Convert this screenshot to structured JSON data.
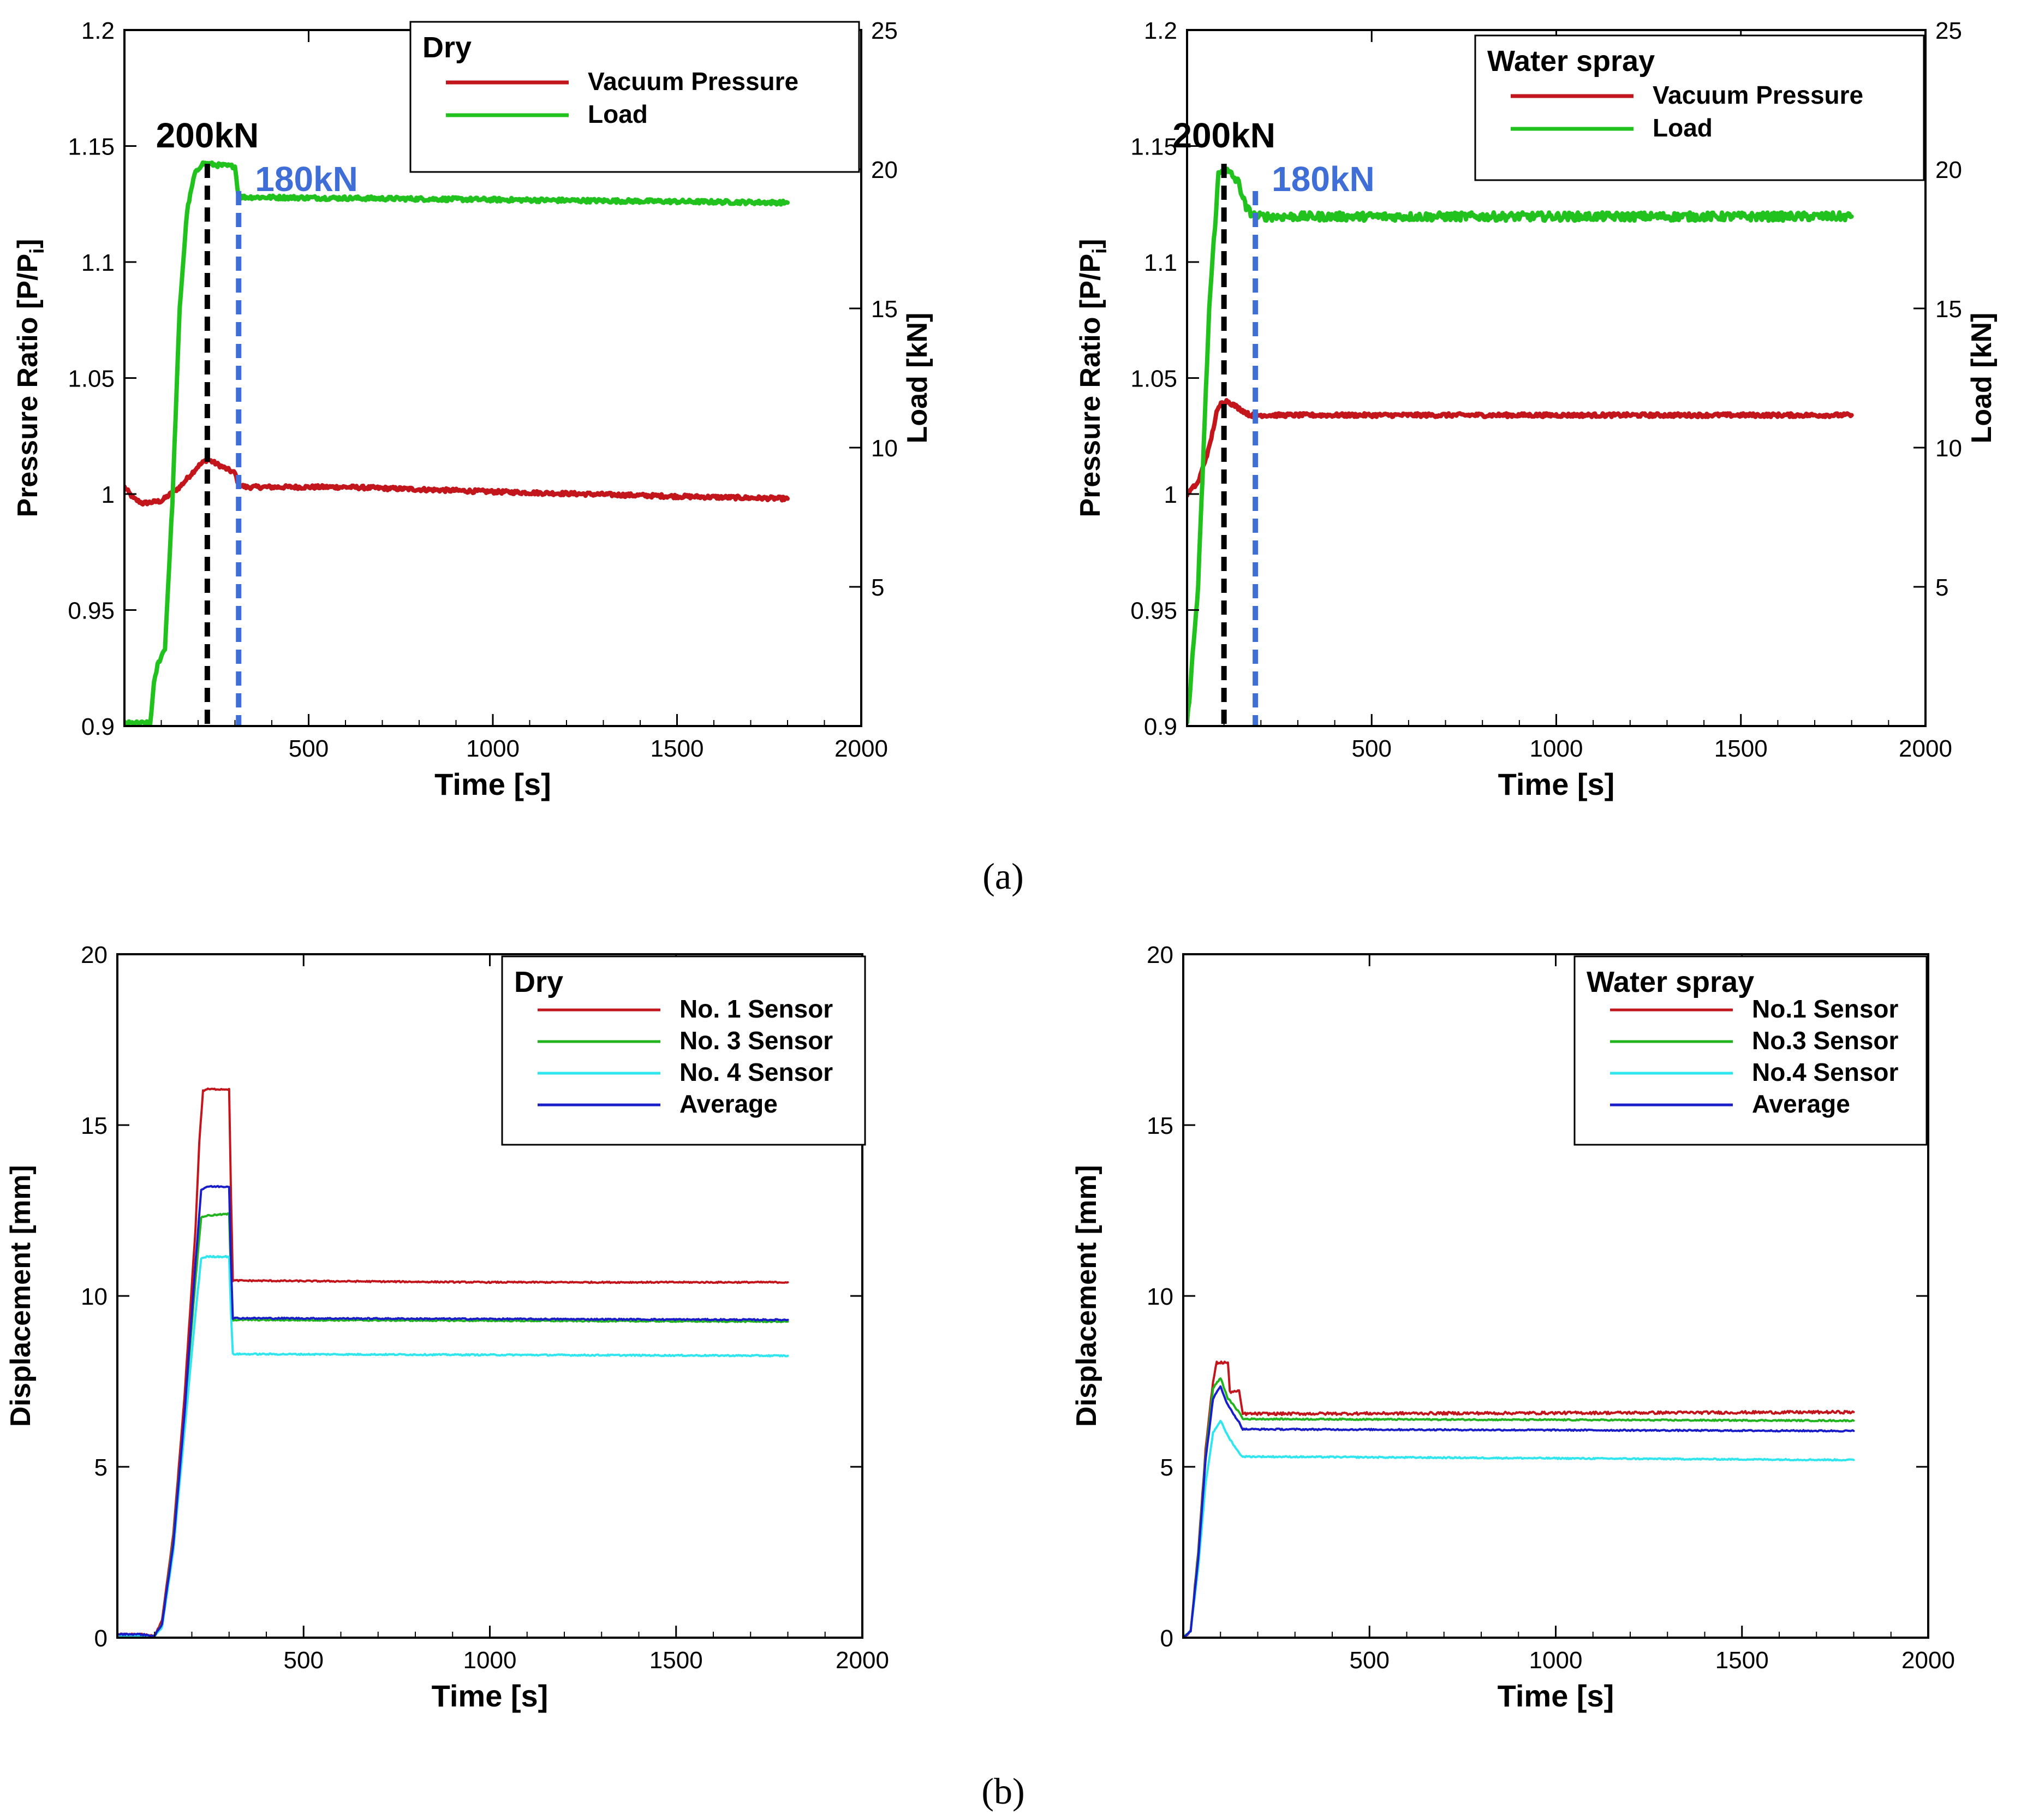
{
  "colors": {
    "vacuum_pressure": "#c3161c",
    "load": "#22c21e",
    "sensor1": "#c3161c",
    "sensor3": "#22b41e",
    "sensor4": "#2fe6ef",
    "average": "#1a1ec8",
    "marker_200": "#000000",
    "marker_180": "#3f6ed6"
  },
  "panel_labels": {
    "a": "(a)",
    "b": "(b)"
  },
  "chart_data": [
    {
      "id": "a-dry",
      "type": "line",
      "legend_title": "Dry",
      "xlabel": "Time [s]",
      "ylabel": "Pressure Ratio [P/P",
      "ylabel_sub": "i",
      "ylabel_end": "]",
      "y2label": "Load [kN]",
      "xlim": [
        0,
        2000
      ],
      "ylim": [
        0.9,
        1.2
      ],
      "y2lim": [
        0,
        25
      ],
      "xticks": [
        500,
        1000,
        1500,
        2000
      ],
      "yticks": [
        0.9,
        0.95,
        1,
        1.05,
        1.1,
        1.15,
        1.2
      ],
      "y2ticks": [
        5,
        10,
        15,
        20,
        25
      ],
      "annotations": [
        {
          "text": "200kN",
          "x": 225,
          "color_key": "marker_200"
        },
        {
          "text": "180kN",
          "x": 310,
          "color_key": "marker_180"
        }
      ],
      "series": [
        {
          "name": "Vacuum Pressure",
          "axis": "left",
          "color_key": "vacuum_pressure",
          "noise": 0.0008,
          "x": [
            0,
            25,
            50,
            100,
            150,
            200,
            225,
            250,
            300,
            310,
            330,
            600,
            1000,
            1500,
            1800
          ],
          "y": [
            1.003,
            0.998,
            0.996,
            0.997,
            1.003,
            1.012,
            1.015,
            1.013,
            1.009,
            1.004,
            1.003,
            1.003,
            1.001,
            0.999,
            0.998
          ]
        },
        {
          "name": "Load",
          "axis": "right",
          "color_key": "load",
          "noise": 0.07,
          "x": [
            0,
            70,
            80,
            90,
            110,
            130,
            150,
            170,
            190,
            210,
            225,
            250,
            300,
            310,
            1800
          ],
          "y": [
            0.1,
            0.1,
            1.5,
            2.2,
            2.8,
            8,
            15,
            18.5,
            19.8,
            20.2,
            20.2,
            20.15,
            20.1,
            19.0,
            18.8
          ]
        }
      ]
    },
    {
      "id": "a-wet",
      "type": "line",
      "legend_title": "Water spray",
      "xlabel": "Time [s]",
      "ylabel": "Pressure Ratio [P/P",
      "ylabel_sub": "i",
      "ylabel_end": "]",
      "y2label": "Load [kN]",
      "xlim": [
        0,
        2000
      ],
      "ylim": [
        0.9,
        1.2
      ],
      "y2lim": [
        0,
        25
      ],
      "xticks": [
        500,
        1000,
        1500,
        2000
      ],
      "yticks": [
        0.9,
        0.95,
        1,
        1.05,
        1.1,
        1.15,
        1.2
      ],
      "y2ticks": [
        5,
        10,
        15,
        20,
        25
      ],
      "annotations": [
        {
          "text": "200kN",
          "x": 100,
          "color_key": "marker_200"
        },
        {
          "text": "180kN",
          "x": 185,
          "color_key": "marker_180"
        }
      ],
      "series": [
        {
          "name": "Vacuum Pressure",
          "axis": "left",
          "color_key": "vacuum_pressure",
          "noise": 0.0008,
          "x": [
            0,
            30,
            60,
            80,
            95,
            110,
            130,
            150,
            170,
            185,
            300,
            1000,
            1800
          ],
          "y": [
            1.0,
            1.005,
            1.02,
            1.035,
            1.04,
            1.04,
            1.038,
            1.036,
            1.034,
            1.034,
            1.034,
            1.034,
            1.034
          ]
        },
        {
          "name": "Load",
          "axis": "right",
          "color_key": "load",
          "noise": 0.15,
          "x": [
            0,
            30,
            60,
            85,
            100,
            120,
            140,
            160,
            185,
            1800
          ],
          "y": [
            0,
            5,
            15,
            19.8,
            20.0,
            19.8,
            19.5,
            18.6,
            18.3,
            18.3
          ]
        }
      ]
    },
    {
      "id": "b-dry",
      "type": "line",
      "legend_title": "Dry",
      "xlabel": "Time [s]",
      "ylabel": "Displacement [mm]",
      "xlim": [
        0,
        2000
      ],
      "ylim": [
        0,
        20
      ],
      "xticks": [
        500,
        1000,
        1500,
        2000
      ],
      "yticks": [
        0,
        5,
        10,
        15,
        20
      ],
      "series": [
        {
          "name": "No. 1 Sensor",
          "color_key": "sensor1",
          "noise": 0.02,
          "x": [
            0,
            60,
            100,
            120,
            150,
            180,
            210,
            220,
            230,
            240,
            300,
            305,
            310,
            1000,
            1800
          ],
          "y": [
            0.1,
            0.1,
            0.05,
            0.5,
            3,
            7,
            12,
            14.5,
            16,
            16.05,
            16.05,
            13,
            10.45,
            10.4,
            10.4
          ]
        },
        {
          "name": "No. 3 Sensor",
          "color_key": "sensor3",
          "noise": 0.02,
          "x": [
            0,
            60,
            100,
            120,
            150,
            180,
            210,
            225,
            240,
            300,
            305,
            310,
            1800
          ],
          "y": [
            0.05,
            0.05,
            0.05,
            0.4,
            2.8,
            6.5,
            10.5,
            12.3,
            12.35,
            12.4,
            10.5,
            9.3,
            9.25
          ]
        },
        {
          "name": "No. 4 Sensor",
          "color_key": "sensor4",
          "noise": 0.02,
          "x": [
            0,
            60,
            100,
            120,
            150,
            180,
            210,
            225,
            240,
            300,
            305,
            310,
            1800
          ],
          "y": [
            0.05,
            0.05,
            0.05,
            0.3,
            2.5,
            6,
            9.5,
            11.1,
            11.15,
            11.15,
            9.5,
            8.3,
            8.25
          ]
        },
        {
          "name": "Average",
          "color_key": "average",
          "noise": 0.02,
          "x": [
            0,
            60,
            100,
            120,
            150,
            180,
            210,
            225,
            240,
            300,
            305,
            310,
            1800
          ],
          "y": [
            0.1,
            0.1,
            0.05,
            0.4,
            2.7,
            6.5,
            11,
            13.1,
            13.2,
            13.2,
            11,
            9.35,
            9.3
          ]
        }
      ]
    },
    {
      "id": "b-wet",
      "type": "line",
      "legend_title": "Water spray",
      "xlabel": "Time [s]",
      "ylabel": "Displacement [mm]",
      "xlim": [
        0,
        2000
      ],
      "ylim": [
        0,
        20
      ],
      "xticks": [
        500,
        1000,
        1500,
        2000
      ],
      "yticks": [
        0,
        5,
        10,
        15,
        20
      ],
      "series": [
        {
          "name": "No.1 Sensor",
          "color_key": "sensor1",
          "noise": 0.04,
          "x": [
            0,
            20,
            40,
            60,
            80,
            90,
            120,
            125,
            150,
            160,
            1800
          ],
          "y": [
            0,
            0.2,
            2.5,
            5.5,
            7.5,
            8.05,
            8.05,
            7.2,
            7.2,
            6.55,
            6.6
          ]
        },
        {
          "name": "No.3 Sensor",
          "color_key": "sensor3",
          "noise": 0.02,
          "x": [
            0,
            20,
            40,
            60,
            80,
            100,
            120,
            150,
            160,
            1800
          ],
          "y": [
            0,
            0.2,
            2.4,
            5.3,
            7.3,
            7.6,
            7.0,
            6.6,
            6.4,
            6.35
          ]
        },
        {
          "name": "No.4 Sensor",
          "color_key": "sensor4",
          "noise": 0.02,
          "x": [
            0,
            20,
            40,
            60,
            80,
            100,
            120,
            150,
            160,
            1800
          ],
          "y": [
            0,
            0.2,
            2.0,
            4.5,
            6.0,
            6.35,
            5.9,
            5.4,
            5.3,
            5.2
          ]
        },
        {
          "name": "Average",
          "color_key": "average",
          "noise": 0.02,
          "x": [
            0,
            20,
            40,
            60,
            80,
            100,
            120,
            150,
            160,
            1800
          ],
          "y": [
            0,
            0.2,
            2.3,
            5.2,
            7.0,
            7.35,
            6.8,
            6.3,
            6.1,
            6.05
          ]
        }
      ]
    }
  ]
}
